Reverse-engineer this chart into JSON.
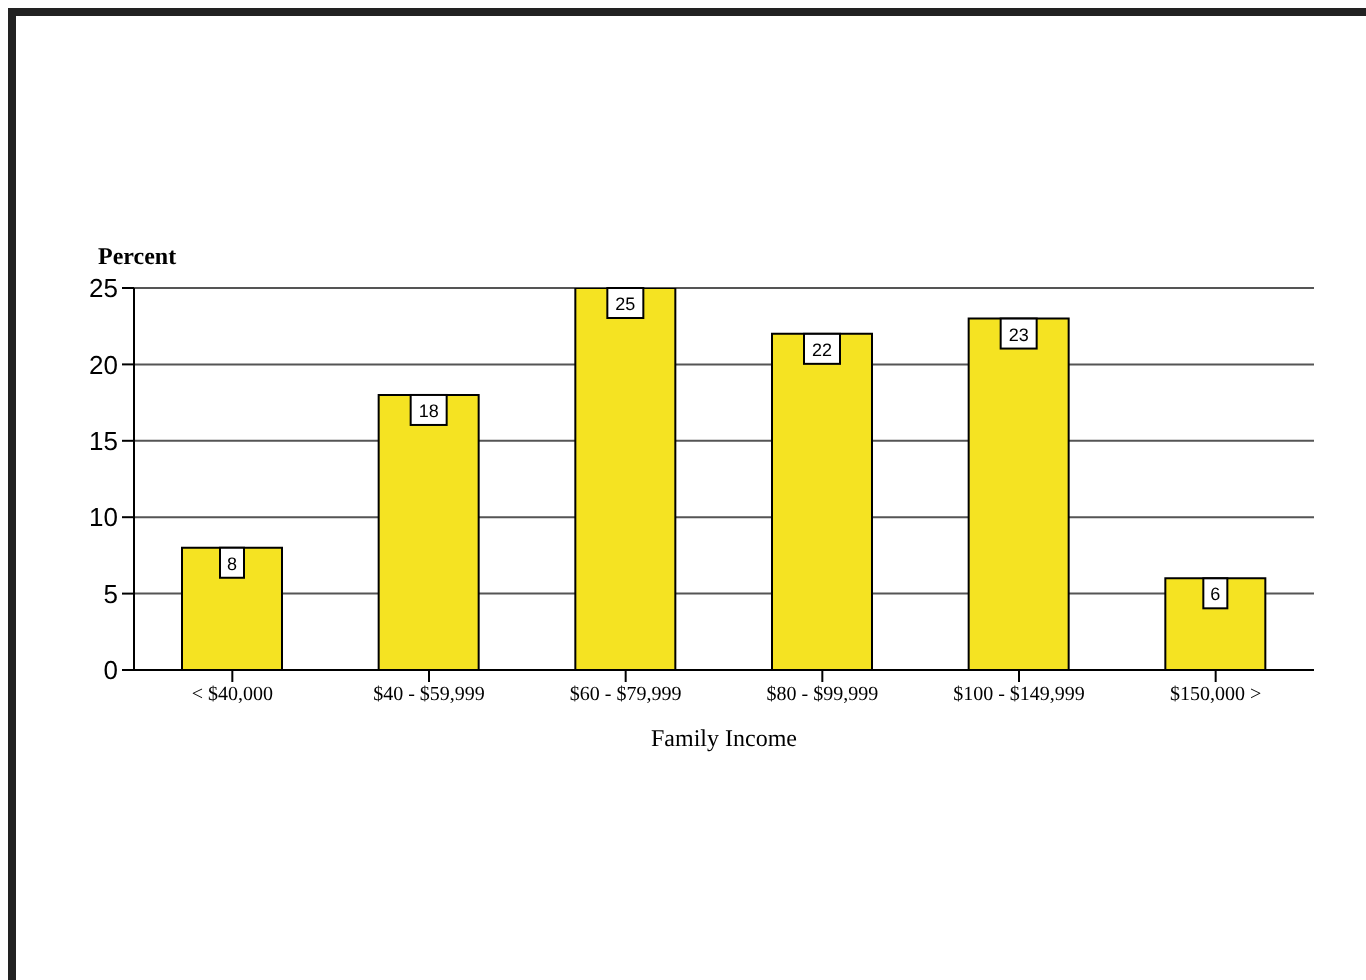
{
  "chart_data": {
    "type": "bar",
    "ylabel": "Percent",
    "xlabel": "Family Income",
    "categories": [
      "< $40,000",
      "$40 - $59,999",
      "$60 - $79,999",
      "$80 - $99,999",
      "$100 - $149,999",
      "$150,000 >"
    ],
    "values": [
      8,
      18,
      25,
      22,
      23,
      6
    ],
    "color": "#f5e322",
    "ylim": [
      0,
      25
    ],
    "yticks": [
      0,
      5,
      10,
      15,
      20,
      25
    ],
    "grid": "y",
    "data_labels": true
  }
}
